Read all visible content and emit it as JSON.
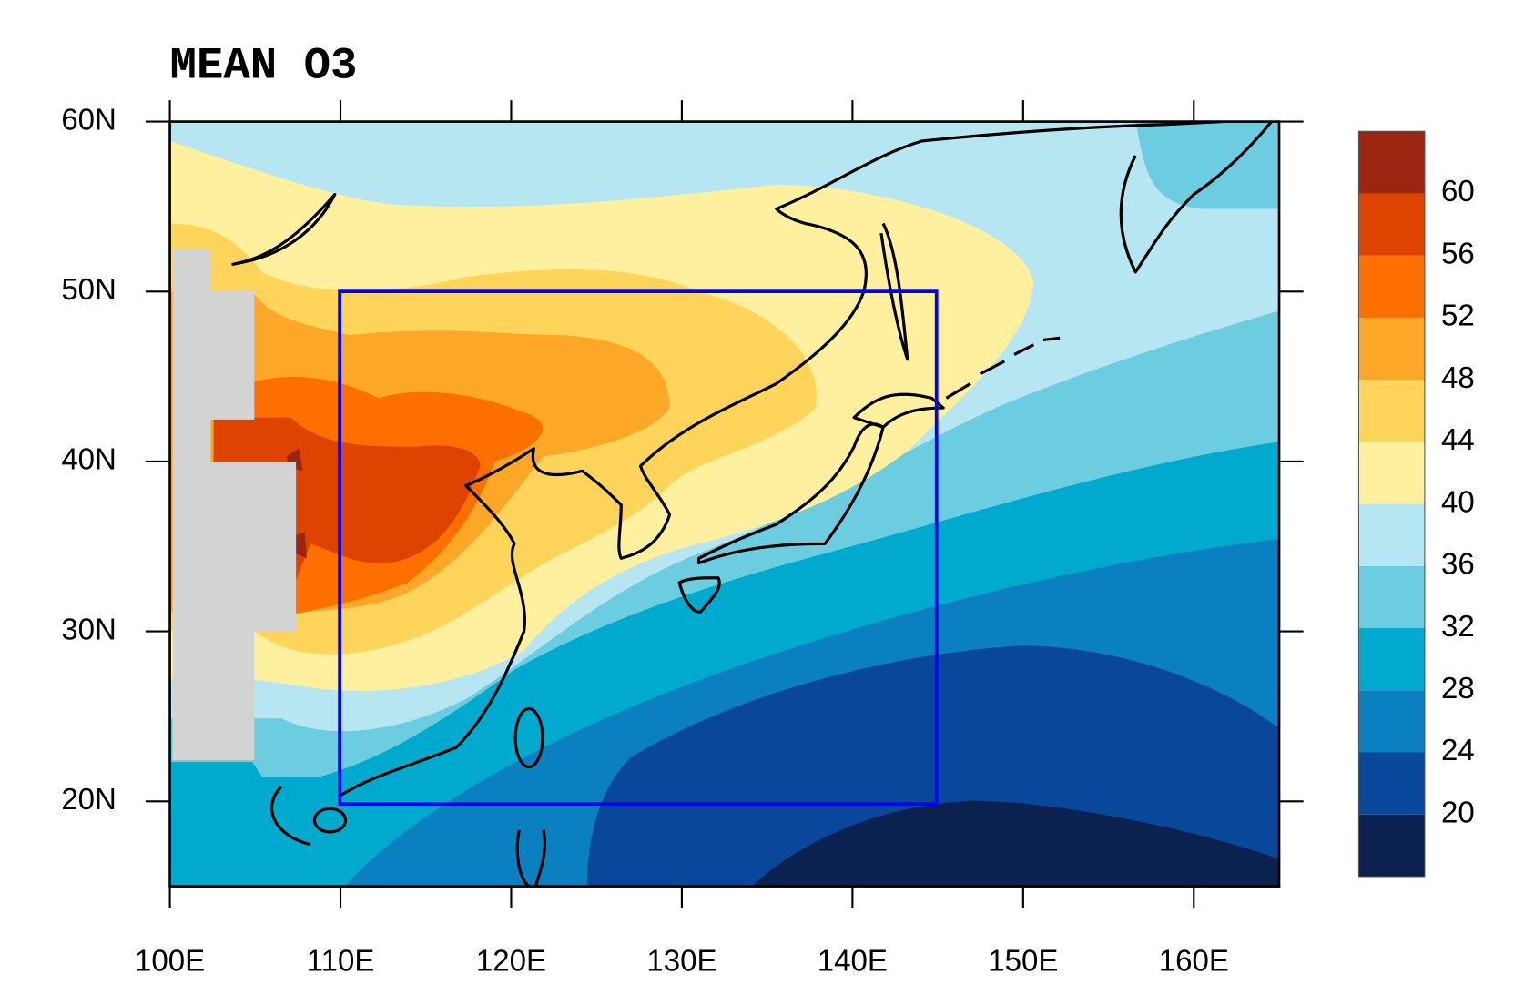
{
  "chart_data": {
    "type": "contour-map",
    "title": "MEAN O3",
    "xlim": [
      100,
      165
    ],
    "ylim": [
      15,
      60
    ],
    "xticks": [
      {
        "value": 100,
        "label": "100E"
      },
      {
        "value": 110,
        "label": "110E"
      },
      {
        "value": 120,
        "label": "120E"
      },
      {
        "value": 130,
        "label": "130E"
      },
      {
        "value": 140,
        "label": "140E"
      },
      {
        "value": 150,
        "label": "150E"
      },
      {
        "value": 160,
        "label": "160E"
      }
    ],
    "yticks": [
      {
        "value": 20,
        "label": "20N"
      },
      {
        "value": 30,
        "label": "30N"
      },
      {
        "value": 40,
        "label": "40N"
      },
      {
        "value": 50,
        "label": "50N"
      },
      {
        "value": 60,
        "label": "60N"
      }
    ],
    "levels": [
      20,
      24,
      28,
      32,
      36,
      40,
      44,
      48,
      52,
      56,
      60
    ],
    "colors": [
      "#0b2150",
      "#08479a",
      "#0a80c0",
      "#00aacf",
      "#6ccce0",
      "#b5e6f1",
      "#fff0a0",
      "#fed45a",
      "#fca728",
      "#fc6f00",
      "#df4300",
      "#9c2512"
    ],
    "missing_color": "#d3d3d3",
    "box_color": "#0000ff"
  }
}
